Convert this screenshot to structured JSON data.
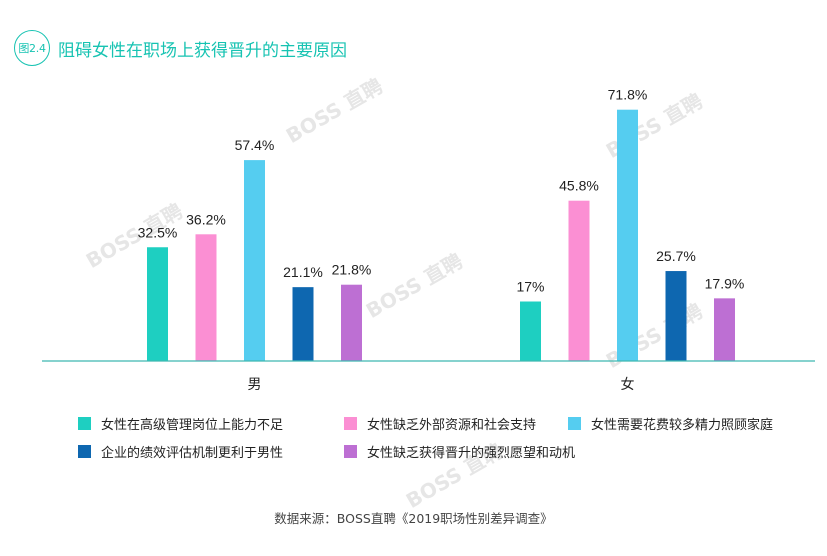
{
  "header": {
    "badge": "图2.4",
    "title": "阻碍女性在职场上获得晋升的主要原因"
  },
  "watermark": "BOSS 直聘",
  "chart_data": {
    "type": "bar",
    "categories": [
      "男",
      "女"
    ],
    "series": [
      {
        "name": "女性在高级管理岗位上能力不足",
        "color": "#1ecfc1",
        "values": [
          32.5,
          17
        ]
      },
      {
        "name": "女性缺乏外部资源和社会支持",
        "color": "#fb8fd3",
        "values": [
          36.2,
          45.8
        ]
      },
      {
        "name": "女性需要花费较多精力照顾家庭",
        "color": "#55cdf0",
        "values": [
          57.4,
          71.8
        ]
      },
      {
        "name": "企业的绩效评估机制更利于男性",
        "color": "#0e67b0",
        "values": [
          21.1,
          25.7
        ]
      },
      {
        "name": "女性缺乏获得晋升的强烈愿望和动机",
        "color": "#bd6fd3",
        "values": [
          21.8,
          17.9
        ]
      }
    ],
    "data_labels": [
      [
        "32.5%",
        "17%"
      ],
      [
        "36.2%",
        "45.8%"
      ],
      [
        "57.4%",
        "71.8%"
      ],
      [
        "21.1%",
        "25.7%"
      ],
      [
        "21.8%",
        "17.9%"
      ]
    ],
    "ylim": [
      0,
      80
    ],
    "grid": false,
    "legend_position": "bottom"
  },
  "source": "数据来源：BOSS直聘《2019职场性别差异调查》"
}
